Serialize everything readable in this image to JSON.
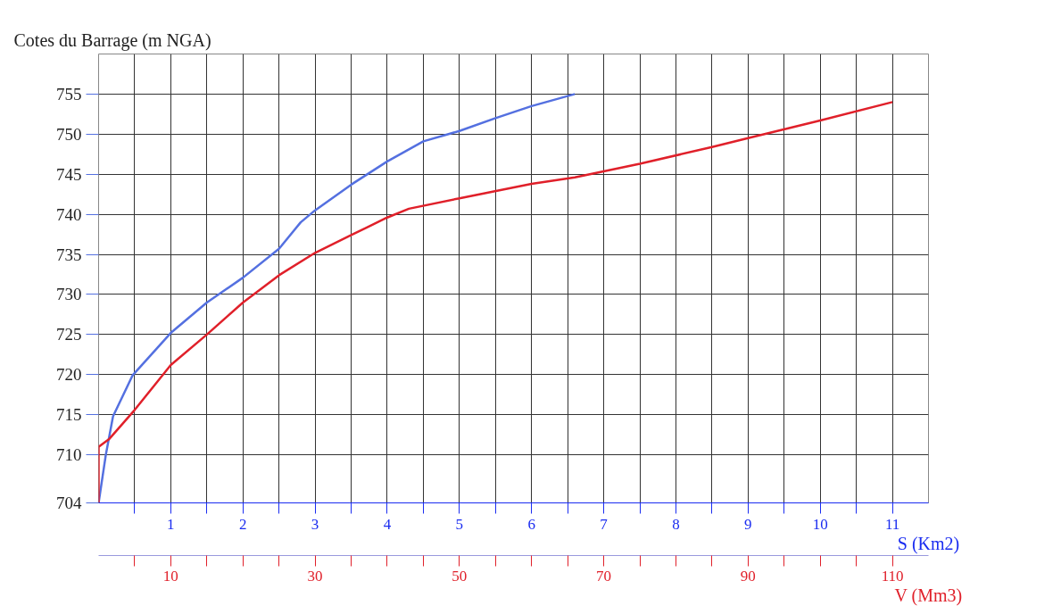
{
  "chart_data": {
    "type": "line",
    "ylabel": "Cotes du Barrage (m NGA)",
    "xlabel": "S (Km2)",
    "x2label": "V (Mm3)",
    "xlim": [
      0,
      11.5
    ],
    "xticks": [
      {
        "value": 0.5,
        "label": null
      },
      1,
      {
        "value": 1.5,
        "label": null
      },
      2,
      {
        "value": 2.5,
        "label": null
      },
      3,
      {
        "value": 3.5,
        "label": null
      },
      4,
      {
        "value": 4.5,
        "label": null
      },
      5,
      {
        "value": 5.5,
        "label": null
      },
      6,
      {
        "value": 6.5,
        "label": null
      },
      7,
      {
        "value": 7.5,
        "label": null
      },
      8,
      {
        "value": 8.5,
        "label": null
      },
      9,
      {
        "value": 9.5,
        "label": null
      },
      10,
      {
        "value": 10.5,
        "label": null
      },
      11
    ],
    "x2lim": [
      0,
      115
    ],
    "x2ticks": [
      {
        "value": 5,
        "label": null
      },
      10,
      {
        "value": 15,
        "label": null
      },
      {
        "value": 20,
        "label": null
      },
      {
        "value": 25,
        "label": null
      },
      30,
      {
        "value": 35,
        "label": null
      },
      {
        "value": 40,
        "label": null
      },
      {
        "value": 45,
        "label": null
      },
      50,
      {
        "value": 55,
        "label": null
      },
      {
        "value": 60,
        "label": null
      },
      {
        "value": 65,
        "label": null
      },
      70,
      {
        "value": 75,
        "label": null
      },
      {
        "value": 80,
        "label": null
      },
      {
        "value": 85,
        "label": null
      },
      90,
      {
        "value": 95,
        "label": null
      },
      {
        "value": 100,
        "label": null
      },
      {
        "value": 105,
        "label": null
      },
      110
    ],
    "ylim": [
      704,
      760
    ],
    "yticks": [
      704,
      710,
      715,
      720,
      725,
      730,
      735,
      740,
      745,
      750,
      755
    ],
    "grid": true,
    "marker": "none",
    "line_style": "solid",
    "series": [
      {
        "color": "#5470e0",
        "x": [
          0,
          0.1,
          0.2,
          0.47,
          1.0,
          1.5,
          2.0,
          2.5,
          2.8,
          3.0,
          3.5,
          4.0,
          4.5,
          5.0,
          5.5,
          6.0,
          6.6
        ],
        "values": [
          704,
          710,
          714.8,
          719.9,
          725.2,
          729,
          732.1,
          735.7,
          739,
          740.5,
          743.7,
          746.6,
          749.1,
          750.4,
          752,
          753.5,
          755
        ]
      },
      {
        "color": "#e0202a",
        "axis": "x2",
        "x": [
          0,
          0,
          1.5,
          5,
          10,
          15,
          20,
          25,
          30,
          35,
          40,
          43,
          50,
          60,
          66,
          75,
          85,
          90,
          100,
          110
        ],
        "values": [
          704,
          711,
          712,
          715.6,
          721.2,
          725,
          729,
          732.4,
          735.2,
          737.4,
          739.6,
          740.7,
          742,
          743.8,
          744.6,
          746.3,
          748.4,
          749.5,
          751.7,
          754
        ]
      }
    ]
  }
}
